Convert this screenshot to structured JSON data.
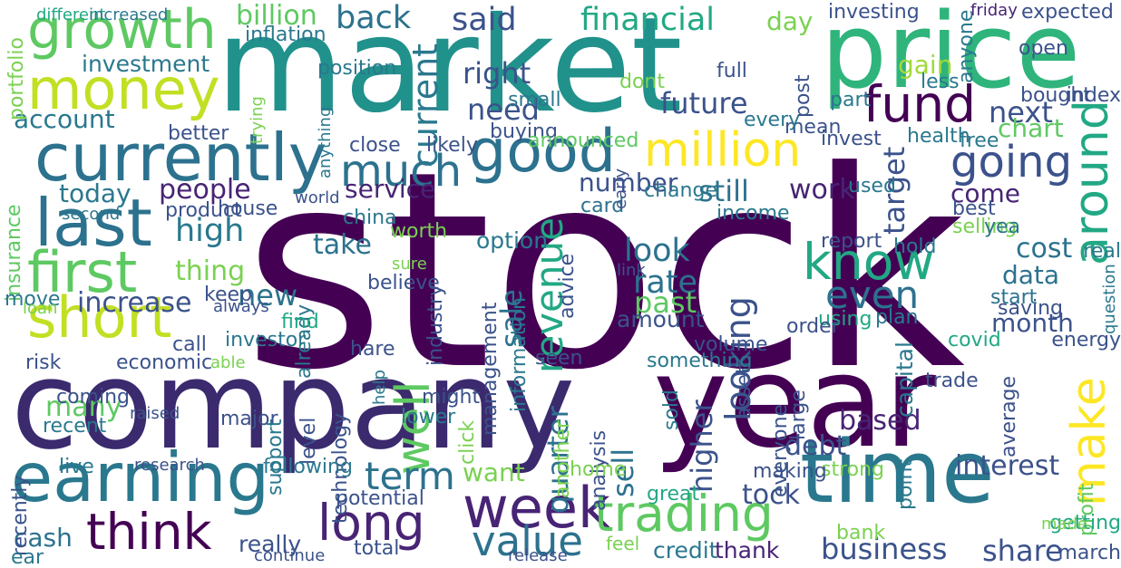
{
  "palette": {
    "background": "#ffffff",
    "dark_purple": "#440154",
    "indigo": "#3b528b",
    "teal": "#21918c",
    "green": "#5ec962",
    "yellow": "#fde725"
  },
  "words": [
    {
      "text": "stock",
      "color": "#440154",
      "vertical": false
    },
    {
      "text": "market",
      "color": "#21918c",
      "vertical": false
    },
    {
      "text": "company",
      "color": "#3b2a6e",
      "vertical": false
    },
    {
      "text": "year",
      "color": "#440154",
      "vertical": false
    },
    {
      "text": "price",
      "color": "#2fb47c",
      "vertical": false
    },
    {
      "text": "time",
      "color": "#2a788e",
      "vertical": false
    },
    {
      "text": "earning",
      "color": "#2a788e",
      "vertical": false
    },
    {
      "text": "currently",
      "color": "#2c728e",
      "vertical": false
    },
    {
      "text": "growth",
      "color": "#5ec962",
      "vertical": false
    },
    {
      "text": "money",
      "color": "#c2df23",
      "vertical": false
    },
    {
      "text": "last",
      "color": "#2c728e",
      "vertical": false
    },
    {
      "text": "first",
      "color": "#5ec962",
      "vertical": false
    },
    {
      "text": "short",
      "color": "#c2df23",
      "vertical": false
    },
    {
      "text": "good",
      "color": "#2c728e",
      "vertical": false
    },
    {
      "text": "million",
      "color": "#fde725",
      "vertical": false
    },
    {
      "text": "fund",
      "color": "#440154",
      "vertical": false
    },
    {
      "text": "going",
      "color": "#3b528b",
      "vertical": false
    },
    {
      "text": "know",
      "color": "#22a884",
      "vertical": false
    },
    {
      "text": "around",
      "color": "#22a884",
      "vertical": true
    },
    {
      "text": "make",
      "color": "#fde725",
      "vertical": true
    },
    {
      "text": "even",
      "color": "#2c728e",
      "vertical": false
    },
    {
      "text": "well",
      "color": "#5ec962",
      "vertical": true
    },
    {
      "text": "week",
      "color": "#482475",
      "vertical": false
    },
    {
      "text": "trading",
      "color": "#5ec962",
      "vertical": false
    },
    {
      "text": "long",
      "color": "#482475",
      "vertical": false
    },
    {
      "text": "think",
      "color": "#440154",
      "vertical": false
    },
    {
      "text": "value",
      "color": "#2c728e",
      "vertical": false
    },
    {
      "text": "much",
      "color": "#2c728e",
      "vertical": false
    },
    {
      "text": "revenue",
      "color": "#22a884",
      "vertical": true
    },
    {
      "text": "current",
      "color": "#2a788e",
      "vertical": true
    },
    {
      "text": "financial",
      "color": "#22a884",
      "vertical": false
    },
    {
      "text": "back",
      "color": "#2c728e",
      "vertical": false
    },
    {
      "text": "said",
      "color": "#3b528b",
      "vertical": false
    },
    {
      "text": "billion",
      "color": "#5ec962",
      "vertical": false
    },
    {
      "text": "day",
      "color": "#7ad151",
      "vertical": false
    },
    {
      "text": "investing",
      "color": "#3b528b",
      "vertical": false
    },
    {
      "text": "friday",
      "color": "#482475",
      "vertical": false
    },
    {
      "text": "expected",
      "color": "#3b528b",
      "vertical": false
    },
    {
      "text": "open",
      "color": "#3b528b",
      "vertical": false
    },
    {
      "text": "investment",
      "color": "#2a788e",
      "vertical": false
    },
    {
      "text": "account",
      "color": "#2a788e",
      "vertical": false
    },
    {
      "text": "right",
      "color": "#3b528b",
      "vertical": false
    },
    {
      "text": "need",
      "color": "#3b528b",
      "vertical": false
    },
    {
      "text": "future",
      "color": "#3b528b",
      "vertical": false
    },
    {
      "text": "next",
      "color": "#3b528b",
      "vertical": false
    },
    {
      "text": "chart",
      "color": "#5ec962",
      "vertical": false
    },
    {
      "text": "gain",
      "color": "#a0da39",
      "vertical": false
    },
    {
      "text": "today",
      "color": "#2a788e",
      "vertical": false
    },
    {
      "text": "people",
      "color": "#482475",
      "vertical": false
    },
    {
      "text": "service",
      "color": "#482475",
      "vertical": false
    },
    {
      "text": "still",
      "color": "#2c728e",
      "vertical": false
    },
    {
      "text": "work",
      "color": "#482475",
      "vertical": false
    },
    {
      "text": "come",
      "color": "#482475",
      "vertical": false
    },
    {
      "text": "high",
      "color": "#2a788e",
      "vertical": false
    },
    {
      "text": "target",
      "color": "#3b528b",
      "vertical": true
    },
    {
      "text": "number",
      "color": "#3b528b",
      "vertical": false
    },
    {
      "text": "thing",
      "color": "#7ad151",
      "vertical": false
    },
    {
      "text": "take",
      "color": "#2c728e",
      "vertical": false
    },
    {
      "text": "look",
      "color": "#2c728e",
      "vertical": false
    },
    {
      "text": "rate",
      "color": "#2c728e",
      "vertical": false
    },
    {
      "text": "past",
      "color": "#5ec962",
      "vertical": false
    },
    {
      "text": "cost",
      "color": "#2c728e",
      "vertical": false
    },
    {
      "text": "data",
      "color": "#2c728e",
      "vertical": false
    },
    {
      "text": "increase",
      "color": "#3b528b",
      "vertical": false
    },
    {
      "text": "new",
      "color": "#2c728e",
      "vertical": false
    },
    {
      "text": "month",
      "color": "#3b528b",
      "vertical": false
    },
    {
      "text": "looking",
      "color": "#3b528b",
      "vertical": true
    },
    {
      "text": "sale",
      "color": "#2c728e",
      "vertical": true
    },
    {
      "text": "insurance",
      "color": "#5ec962",
      "vertical": true
    },
    {
      "text": "move",
      "color": "#2a788e",
      "vertical": false
    },
    {
      "text": "interest",
      "color": "#3b528b",
      "vertical": false
    },
    {
      "text": "based",
      "color": "#482475",
      "vertical": false
    },
    {
      "text": "debt",
      "color": "#3b528b",
      "vertical": false
    },
    {
      "text": "average",
      "color": "#3b528b",
      "vertical": true
    },
    {
      "text": "volume",
      "color": "#3b528b",
      "vertical": false
    },
    {
      "text": "hare",
      "color": "#3b528b",
      "vertical": false
    },
    {
      "text": "many",
      "color": "#5ec962",
      "vertical": false
    },
    {
      "text": "recent",
      "color": "#2a788e",
      "vertical": false
    },
    {
      "text": "want",
      "color": "#7ad151",
      "vertical": false
    },
    {
      "text": "term",
      "color": "#2c728e",
      "vertical": false
    },
    {
      "text": "quarter",
      "color": "#2c728e",
      "vertical": true
    },
    {
      "text": "sell",
      "color": "#2c728e",
      "vertical": true
    },
    {
      "text": "higher",
      "color": "#3b528b",
      "vertical": true
    },
    {
      "text": "tock",
      "color": "#3b528b",
      "vertical": false
    },
    {
      "text": "business",
      "color": "#3b528b",
      "vertical": false
    },
    {
      "text": "share",
      "color": "#3b528b",
      "vertical": false
    },
    {
      "text": "credit",
      "color": "#2a788e",
      "vertical": false
    },
    {
      "text": "thank",
      "color": "#482475",
      "vertical": false
    },
    {
      "text": "profit",
      "color": "#5ec962",
      "vertical": true
    },
    {
      "text": "cash",
      "color": "#2c728e",
      "vertical": false
    },
    {
      "text": "really",
      "color": "#3b528b",
      "vertical": false
    },
    {
      "text": "total",
      "color": "#3b528b",
      "vertical": false
    },
    {
      "text": "potential",
      "color": "#3b528b",
      "vertical": false
    },
    {
      "text": "great",
      "color": "#22a884",
      "vertical": false
    },
    {
      "text": "bank",
      "color": "#7ad151",
      "vertical": false
    },
    {
      "text": "strong",
      "color": "#7ad151",
      "vertical": false
    },
    {
      "text": "making",
      "color": "#3b528b",
      "vertical": false
    },
    {
      "text": "covid",
      "color": "#22a884",
      "vertical": false
    },
    {
      "text": "plan",
      "color": "#2a788e",
      "vertical": false
    },
    {
      "text": "start",
      "color": "#2c728e",
      "vertical": false
    },
    {
      "text": "saving",
      "color": "#3b528b",
      "vertical": false
    },
    {
      "text": "energy",
      "color": "#3b528b",
      "vertical": false
    },
    {
      "text": "trade",
      "color": "#3b528b",
      "vertical": false
    },
    {
      "text": "capital",
      "color": "#2a788e",
      "vertical": true
    },
    {
      "text": "report",
      "color": "#3b528b",
      "vertical": false
    },
    {
      "text": "hold",
      "color": "#2a788e",
      "vertical": false
    },
    {
      "text": "real",
      "color": "#2a788e",
      "vertical": false
    },
    {
      "text": "using",
      "color": "#22a884",
      "vertical": false
    },
    {
      "text": "getting",
      "color": "#22a884",
      "vertical": false
    },
    {
      "text": "march",
      "color": "#3b528b",
      "vertical": false
    },
    {
      "text": "mean",
      "color": "#3b528b",
      "vertical": false
    },
    {
      "text": "invest",
      "color": "#3b528b",
      "vertical": false
    },
    {
      "text": "health",
      "color": "#2a788e",
      "vertical": false
    },
    {
      "text": "free",
      "color": "#2a788e",
      "vertical": false
    },
    {
      "text": "used",
      "color": "#2a788e",
      "vertical": false
    },
    {
      "text": "selling",
      "color": "#7ad151",
      "vertical": false
    },
    {
      "text": "best",
      "color": "#3b528b",
      "vertical": false
    },
    {
      "text": "yea",
      "color": "#2a788e",
      "vertical": false
    },
    {
      "text": "income",
      "color": "#2a788e",
      "vertical": false
    },
    {
      "text": "change",
      "color": "#2a788e",
      "vertical": false
    },
    {
      "text": "card",
      "color": "#2c728e",
      "vertical": false
    },
    {
      "text": "buying",
      "color": "#3b528b",
      "vertical": false
    },
    {
      "text": "likely",
      "color": "#3b528b",
      "vertical": false
    },
    {
      "text": "announced",
      "color": "#5ec962",
      "vertical": false
    },
    {
      "text": "close",
      "color": "#3b528b",
      "vertical": false
    },
    {
      "text": "better",
      "color": "#3b528b",
      "vertical": false
    },
    {
      "text": "small",
      "color": "#2a788e",
      "vertical": false
    },
    {
      "text": "dont",
      "color": "#7ad151",
      "vertical": false
    },
    {
      "text": "full",
      "color": "#3b528b",
      "vertical": false
    },
    {
      "text": "less",
      "color": "#2a788e",
      "vertical": false
    },
    {
      "text": "part",
      "color": "#2a788e",
      "vertical": false
    },
    {
      "text": "every",
      "color": "#2a788e",
      "vertical": false
    },
    {
      "text": "bought",
      "color": "#3b528b",
      "vertical": false
    },
    {
      "text": "index",
      "color": "#3b528b",
      "vertical": false
    },
    {
      "text": "anyone",
      "color": "#2a788e",
      "vertical": true
    },
    {
      "text": "position",
      "color": "#2a788e",
      "vertical": false
    },
    {
      "text": "inflation",
      "color": "#2a788e",
      "vertical": false
    },
    {
      "text": "different",
      "color": "#22a884",
      "vertical": false
    },
    {
      "text": "increased",
      "color": "#2a788e",
      "vertical": false
    },
    {
      "text": "portfolio",
      "color": "#7ad151",
      "vertical": true
    },
    {
      "text": "world",
      "color": "#3b528b",
      "vertical": false
    },
    {
      "text": "house",
      "color": "#3b528b",
      "vertical": false
    },
    {
      "text": "product",
      "color": "#3b528b",
      "vertical": false
    },
    {
      "text": "second",
      "color": "#2a788e",
      "vertical": false
    },
    {
      "text": "china",
      "color": "#2a788e",
      "vertical": false
    },
    {
      "text": "worth",
      "color": "#7ad151",
      "vertical": false
    },
    {
      "text": "option",
      "color": "#2a788e",
      "vertical": false
    },
    {
      "text": "always",
      "color": "#3b528b",
      "vertical": false
    },
    {
      "text": "keep",
      "color": "#3b528b",
      "vertical": false
    },
    {
      "text": "loan",
      "color": "#7ad151",
      "vertical": false
    },
    {
      "text": "already",
      "color": "#2a788e",
      "vertical": true
    },
    {
      "text": "find",
      "color": "#22a884",
      "vertical": false
    },
    {
      "text": "believe",
      "color": "#3b528b",
      "vertical": false
    },
    {
      "text": "industry",
      "color": "#3b528b",
      "vertical": true
    },
    {
      "text": "information",
      "color": "#2a788e",
      "vertical": true
    },
    {
      "text": "advice",
      "color": "#3b528b",
      "vertical": true
    },
    {
      "text": "management",
      "color": "#3b528b",
      "vertical": true
    },
    {
      "text": "amount",
      "color": "#3b528b",
      "vertical": false
    },
    {
      "text": "risk",
      "color": "#3b528b",
      "vertical": false
    },
    {
      "text": "economic",
      "color": "#3b528b",
      "vertical": false
    },
    {
      "text": "call",
      "color": "#3b528b",
      "vertical": false
    },
    {
      "text": "able",
      "color": "#7ad151",
      "vertical": false
    },
    {
      "text": "investor",
      "color": "#2a788e",
      "vertical": false
    },
    {
      "text": "help",
      "color": "#2a788e",
      "vertical": true
    },
    {
      "text": "seen",
      "color": "#3b528b",
      "vertical": false
    },
    {
      "text": "something",
      "color": "#2a788e",
      "vertical": false
    },
    {
      "text": "coming",
      "color": "#3b528b",
      "vertical": false
    },
    {
      "text": "raised",
      "color": "#3b528b",
      "vertical": false
    },
    {
      "text": "major",
      "color": "#3b528b",
      "vertical": false
    },
    {
      "text": "support",
      "color": "#2a788e",
      "vertical": true
    },
    {
      "text": "level",
      "color": "#3b528b",
      "vertical": true
    },
    {
      "text": "technology",
      "color": "#3b528b",
      "vertical": true
    },
    {
      "text": "might",
      "color": "#3b528b",
      "vertical": false
    },
    {
      "text": "lower",
      "color": "#2a788e",
      "vertical": false
    },
    {
      "text": "click",
      "color": "#7ad151",
      "vertical": true
    },
    {
      "text": "another",
      "color": "#7ad151",
      "vertical": true
    },
    {
      "text": "analysis",
      "color": "#3b528b",
      "vertical": true
    },
    {
      "text": "sold",
      "color": "#2a788e",
      "vertical": true
    },
    {
      "text": "asset",
      "color": "#3b528b",
      "vertical": true
    },
    {
      "text": "large",
      "color": "#3b528b",
      "vertical": true
    },
    {
      "text": "everyone",
      "color": "#3b528b",
      "vertical": true
    },
    {
      "text": "order",
      "color": "#3b528b",
      "vertical": false
    },
    {
      "text": "point",
      "color": "#2a788e",
      "vertical": true
    },
    {
      "text": "recently",
      "color": "#3b528b",
      "vertical": true
    },
    {
      "text": "live",
      "color": "#2a788e",
      "vertical": false
    },
    {
      "text": "research",
      "color": "#3b528b",
      "vertical": false
    },
    {
      "text": "following",
      "color": "#2a788e",
      "vertical": false
    },
    {
      "text": "home",
      "color": "#7ad151",
      "vertical": false
    },
    {
      "text": "ear",
      "color": "#2a788e",
      "vertical": false
    },
    {
      "text": "continue",
      "color": "#3b528b",
      "vertical": false
    },
    {
      "text": "release",
      "color": "#3b528b",
      "vertical": false
    },
    {
      "text": "feel",
      "color": "#7ad151",
      "vertical": false
    },
    {
      "text": "made",
      "color": "#7ad151",
      "vertical": false
    },
    {
      "text": "question",
      "color": "#2a788e",
      "vertical": true
    },
    {
      "text": "link",
      "color": "#3b528b",
      "vertical": false
    },
    {
      "text": "sure",
      "color": "#7ad151",
      "vertical": false
    },
    {
      "text": "trying",
      "color": "#7ad151",
      "vertical": true
    },
    {
      "text": "anything",
      "color": "#2a788e",
      "vertical": true
    },
    {
      "text": "post",
      "color": "#3b528b",
      "vertical": true
    },
    {
      "text": "early",
      "color": "#3b528b",
      "vertical": true
    }
  ]
}
